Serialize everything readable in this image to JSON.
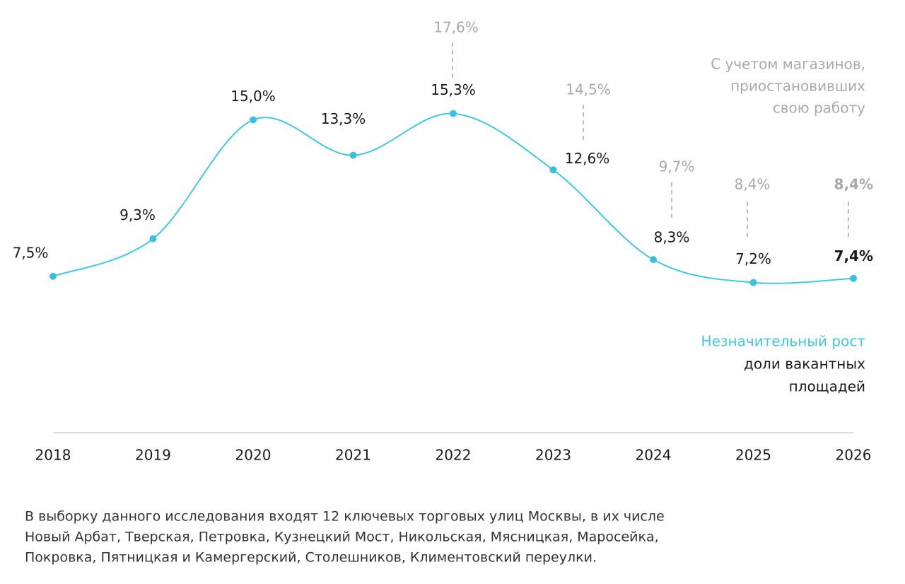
{
  "chart_data": {
    "type": "line",
    "categories": [
      "2018",
      "2019",
      "2020",
      "2021",
      "2022",
      "2023",
      "2024",
      "2025",
      "2026"
    ],
    "values": [
      7.5,
      9.3,
      15.0,
      13.3,
      15.3,
      12.6,
      8.3,
      7.2,
      7.4
    ],
    "value_labels": [
      "7,5%",
      "9,3%",
      "15,0%",
      "13,3%",
      "15,3%",
      "12,6%",
      "8,3%",
      "7,2%",
      "7,4%"
    ],
    "color": "#3fc8e4",
    "secondary_values": [
      null,
      null,
      null,
      null,
      17.6,
      14.5,
      9.7,
      8.4,
      8.4
    ],
    "secondary_value_labels": [
      null,
      null,
      null,
      null,
      "17,6%",
      "14,5%",
      "9,7%",
      "8,4%",
      "8,4%"
    ],
    "secondary_color": "#a9a9a9",
    "ylim": [
      0,
      20
    ],
    "secondary_annotation": [
      "С учетом магазинов,",
      "приостановивших",
      "свою работу"
    ],
    "main_annotation": [
      "Незначительный рост",
      "доли вакантных",
      "площадей"
    ],
    "footnote": [
      "В выборку данного исследования входят 12 ключевых торговых улиц Москвы, в их числе",
      "Новый Арбат, Тверская, Петровка, Кузнецкий Мост, Никольская, Мясницкая, Маросейка,",
      "Покровка, Пятницкая и Камергерский, Столешников, Климентовский переулки."
    ]
  }
}
